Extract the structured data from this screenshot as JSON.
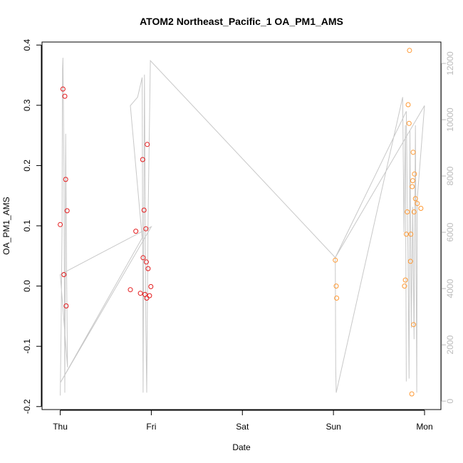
{
  "chart_data": {
    "type": "scatter",
    "title": "ATOM2 Northeast_Pacific_1 OA_PM1_AMS",
    "xlabel": "Date",
    "ylabel": "OA_PM1_AMS",
    "x_unit": "days (0 = Thu)",
    "xlim": [
      -0.2,
      4.18
    ],
    "ylim": [
      -0.205,
      0.405
    ],
    "y2lim": [
      -300,
      12760
    ],
    "x_ticks": [
      {
        "value": 0,
        "label": "Thu"
      },
      {
        "value": 1,
        "label": "Fri"
      },
      {
        "value": 2,
        "label": "Sat"
      },
      {
        "value": 3,
        "label": "Sun"
      },
      {
        "value": 4,
        "label": "Mon"
      }
    ],
    "y_ticks": [
      {
        "value": -0.2,
        "label": "-0.2"
      },
      {
        "value": -0.1,
        "label": "-0.1"
      },
      {
        "value": 0.0,
        "label": "0.0"
      },
      {
        "value": 0.1,
        "label": "0.1"
      },
      {
        "value": 0.2,
        "label": "0.2"
      },
      {
        "value": 0.3,
        "label": "0.3"
      },
      {
        "value": 0.4,
        "label": "0.4"
      }
    ],
    "y2_ticks": [
      {
        "value": 0,
        "label": "0"
      },
      {
        "value": 2000,
        "label": "2000"
      },
      {
        "value": 4000,
        "label": "4000"
      },
      {
        "value": 6000,
        "label": "6000"
      },
      {
        "value": 8000,
        "label": "8000"
      },
      {
        "value": 10000,
        "label": "10000"
      },
      {
        "value": 12000,
        "label": "12000"
      }
    ],
    "grid": false,
    "colors": {
      "red_points": "#e41a1c",
      "orange_points": "#ff9933",
      "altitude_line": "#c8c8c8",
      "right_axis": "#bbbbbb",
      "axis": "#000000"
    },
    "series": [
      {
        "color": "#e41a1c",
        "points": [
          [
            0.0,
            0.102
          ],
          [
            0.03,
            0.327
          ],
          [
            0.04,
            0.019
          ],
          [
            0.05,
            0.315
          ],
          [
            0.06,
            0.177
          ],
          [
            0.065,
            -0.033
          ],
          [
            0.075,
            0.125
          ],
          [
            0.77,
            -0.006
          ],
          [
            0.83,
            0.091
          ],
          [
            0.88,
            -0.012
          ],
          [
            0.905,
            0.21
          ],
          [
            0.91,
            0.047
          ],
          [
            0.92,
            0.126
          ],
          [
            0.93,
            -0.014
          ],
          [
            0.94,
            0.095
          ],
          [
            0.945,
            0.04
          ],
          [
            0.95,
            -0.02
          ],
          [
            0.955,
            0.235
          ],
          [
            0.965,
            0.029
          ],
          [
            0.98,
            -0.016
          ],
          [
            0.995,
            -0.001
          ]
        ]
      },
      {
        "color": "#ff9933",
        "points": [
          [
            3.02,
            0.043
          ],
          [
            3.03,
            0.0
          ],
          [
            3.035,
            -0.02
          ],
          [
            3.78,
            0.0
          ],
          [
            3.79,
            0.01
          ],
          [
            3.8,
            0.086
          ],
          [
            3.81,
            0.123
          ],
          [
            3.82,
            0.301
          ],
          [
            3.83,
            0.27
          ],
          [
            3.835,
            0.391
          ],
          [
            3.845,
            0.041
          ],
          [
            3.85,
            0.086
          ],
          [
            3.86,
            -0.179
          ],
          [
            3.865,
            0.165
          ],
          [
            3.87,
            0.175
          ],
          [
            3.875,
            0.222
          ],
          [
            3.88,
            -0.064
          ],
          [
            3.885,
            0.123
          ],
          [
            3.89,
            0.186
          ],
          [
            3.9,
            0.145
          ],
          [
            3.92,
            0.137
          ],
          [
            3.96,
            0.129
          ]
        ]
      }
    ],
    "altitude_line": [
      [
        0.0,
        200
      ],
      [
        0.01,
        2600
      ],
      [
        0.02,
        6200
      ],
      [
        0.025,
        11800
      ],
      [
        0.03,
        12200
      ],
      [
        0.04,
        8400
      ],
      [
        0.05,
        300
      ],
      [
        0.06,
        9500
      ],
      [
        0.07,
        4500
      ],
      [
        0.08,
        1200
      ],
      [
        0.0,
        4500
      ],
      [
        1.0,
        6200
      ],
      [
        0.0,
        650
      ],
      [
        0.9,
        5800
      ],
      [
        0.77,
        10500
      ],
      [
        0.85,
        10800
      ],
      [
        0.9,
        11500
      ],
      [
        0.91,
        300
      ],
      [
        0.925,
        11600
      ],
      [
        0.94,
        2500
      ],
      [
        0.95,
        300
      ],
      [
        0.965,
        6500
      ],
      [
        0.99,
        12100
      ],
      [
        3.02,
        5100
      ],
      [
        3.8,
        10300
      ],
      [
        3.82,
        4600
      ],
      [
        3.83,
        800
      ],
      [
        3.84,
        9600
      ],
      [
        3.855,
        2600
      ],
      [
        3.87,
        6900
      ],
      [
        3.885,
        2200
      ],
      [
        3.9,
        9800
      ],
      [
        3.915,
        300
      ],
      [
        3.92,
        7200
      ],
      [
        4.0,
        10500
      ],
      [
        3.02,
        5100
      ],
      [
        3.025,
        1200
      ],
      [
        3.03,
        300
      ],
      [
        3.76,
        10800
      ],
      [
        3.775,
        6000
      ],
      [
        3.79,
        9800
      ],
      [
        3.8,
        700
      ]
    ]
  }
}
